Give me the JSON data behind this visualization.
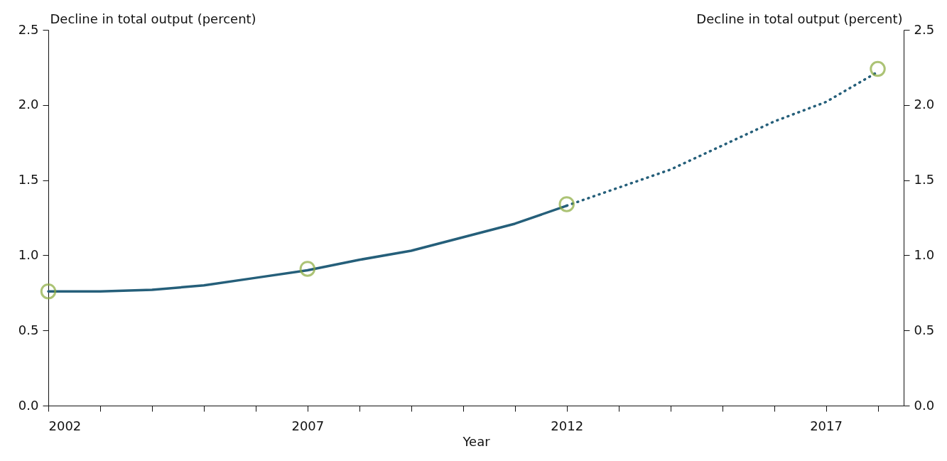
{
  "chart_data": {
    "type": "line",
    "xlabel": "Year",
    "ylabel": "Decline in total output (percent)",
    "y2label": "Decline in total output (percent)",
    "series": [
      {
        "color": "#255f7a",
        "line_style": "solid",
        "x": [
          2002,
          2003,
          2004,
          2005,
          2006,
          2007,
          2008,
          2009,
          2010,
          2011,
          2012
        ],
        "values": [
          0.76,
          0.76,
          0.77,
          0.8,
          0.85,
          0.9,
          0.97,
          1.03,
          1.12,
          1.21,
          1.33
        ]
      },
      {
        "color": "#255f7a",
        "line_style": "dotted",
        "x": [
          2012,
          2013,
          2014,
          2015,
          2016,
          2017,
          2018
        ],
        "values": [
          1.33,
          1.45,
          1.57,
          1.73,
          1.89,
          2.02,
          2.22
        ]
      },
      {
        "type": "scatter",
        "color": "#8aab3c",
        "marker": "circle",
        "x": [
          2002,
          2007,
          2012,
          2018
        ],
        "values": [
          0.76,
          0.91,
          1.34,
          2.24
        ]
      }
    ],
    "xlim": [
      2002,
      2018.5
    ],
    "xticks": [
      2002,
      {
        "value": 2003,
        "label": null
      },
      {
        "value": 2004,
        "label": null
      },
      {
        "value": 2005,
        "label": null
      },
      {
        "value": 2006,
        "label": null
      },
      2007,
      {
        "value": 2008,
        "label": null
      },
      {
        "value": 2009,
        "label": null
      },
      {
        "value": 2010,
        "label": null
      },
      {
        "value": 2011,
        "label": null
      },
      2012,
      {
        "value": 2013,
        "label": null
      },
      {
        "value": 2014,
        "label": null
      },
      {
        "value": 2015,
        "label": null
      },
      {
        "value": 2016,
        "label": null
      },
      2017,
      {
        "value": 2018,
        "label": null
      }
    ],
    "ylim": [
      0,
      2.5
    ],
    "yticks": [
      {
        "value": 0,
        "label": "0.0"
      },
      {
        "value": 0.5,
        "label": "0.5"
      },
      {
        "value": 1,
        "label": "1.0"
      },
      {
        "value": 1.5,
        "label": "1.5"
      },
      {
        "value": 2,
        "label": "2.0"
      },
      {
        "value": 2.5,
        "label": "2.5"
      }
    ],
    "y2lim": [
      0,
      2.5
    ],
    "y2ticks": [
      {
        "value": 0,
        "label": "0.0"
      },
      {
        "value": 0.5,
        "label": "0.5"
      },
      {
        "value": 1,
        "label": "1.0"
      },
      {
        "value": 1.5,
        "label": "1.5"
      },
      {
        "value": 2,
        "label": "2.0"
      },
      {
        "value": 2.5,
        "label": "2.5"
      }
    ],
    "grid": false
  }
}
